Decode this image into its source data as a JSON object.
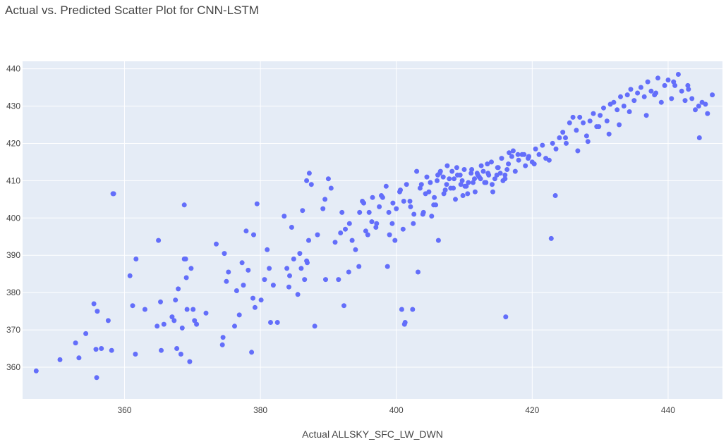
{
  "chart_data": {
    "type": "scatter",
    "title": "Actual vs. Predicted Scatter Plot for CNN-LSTM",
    "xlabel": "Actual ALLSKY_SFC_LW_DWN",
    "ylabel": "",
    "xlim": [
      345,
      448
    ],
    "ylim": [
      351.5,
      442
    ],
    "x_ticks": [
      360,
      380,
      400,
      420,
      440
    ],
    "y_ticks": [
      360,
      370,
      380,
      390,
      400,
      410,
      420,
      430,
      440
    ],
    "grid": true,
    "legend": "none",
    "plot_background": "#E5ECF6",
    "grid_color": "#FFFFFF",
    "marker_color": "#636EFA",
    "series": [
      {
        "x": [
          347.0,
          350.5,
          352.8,
          353.3,
          354.3,
          355.5,
          355.8,
          355.9,
          356.0,
          356.6,
          357.6,
          358.1,
          358.3,
          360.8,
          361.2,
          361.6,
          361.7,
          363.0,
          364.8,
          365.0,
          365.3,
          365.4,
          365.8,
          367.0,
          367.3,
          367.5,
          367.7,
          367.9,
          368.3,
          368.5,
          368.8,
          369.0,
          369.1,
          369.2,
          369.6,
          369.8,
          370.1,
          370.3,
          370.6,
          372.0,
          373.5,
          374.4,
          374.5,
          374.7,
          375.0,
          375.3,
          376.2,
          376.5,
          376.9,
          377.3,
          377.5,
          377.9,
          378.2,
          378.7,
          378.9,
          379.0,
          379.2,
          379.5,
          380.1,
          380.6,
          381.0,
          381.3,
          381.9,
          382.5,
          383.5,
          383.9,
          384.3,
          384.6,
          384.9,
          385.5,
          385.8,
          386.0,
          386.2,
          386.5,
          386.8,
          387.1,
          387.5,
          388.0,
          388.4,
          389.2,
          389.5,
          390.0,
          390.4,
          391.0,
          391.5,
          392.0,
          392.5,
          393.0,
          393.5,
          394.0,
          394.5,
          395.0,
          395.5,
          396.0,
          396.5,
          397.0,
          397.5,
          398.0,
          398.5,
          399.0,
          399.5,
          400.0,
          400.5,
          401.0,
          401.5,
          402.0,
          402.5,
          403.0,
          403.5,
          404.0,
          404.5,
          405.0,
          405.5,
          406.0,
          406.5,
          407.0,
          407.5,
          408.0,
          408.5,
          409.0,
          409.5,
          410.0,
          410.5,
          411.0,
          411.5,
          412.0,
          412.5,
          413.0,
          413.5,
          414.0,
          414.5,
          415.0,
          415.5,
          416.0,
          416.5,
          417.0,
          417.5,
          418.0,
          418.5,
          419.0,
          419.5,
          420.0,
          420.5,
          421.0,
          421.5,
          422.0,
          422.5,
          423.0,
          423.5,
          424.0,
          424.5,
          425.0,
          425.5,
          426.0,
          426.5,
          427.0,
          427.5,
          428.0,
          428.5,
          429.0,
          429.5,
          430.0,
          430.5,
          431.0,
          431.5,
          432.0,
          432.5,
          433.0,
          433.5,
          434.0,
          434.5,
          435.0,
          435.5,
          436.0,
          436.5,
          437.0,
          437.5,
          438.0,
          438.5,
          439.0,
          439.5,
          440.0,
          440.5,
          441.0,
          441.5,
          442.0,
          442.5,
          443.0,
          443.5,
          444.0,
          444.5,
          445.0,
          445.5,
          446.5,
          395.2,
          397.8,
          399.4,
          401.1,
          402.6,
          404.3,
          405.8,
          407.2,
          408.7,
          410.1,
          411.6,
          413.2,
          414.8,
          416.3,
          417.9,
          419.4,
          396.4,
          398.9,
          400.6,
          402.1,
          403.7,
          405.2,
          406.9,
          408.4,
          409.8,
          411.3,
          412.8,
          414.2,
          415.7,
          417.2,
          418.8,
          420.3,
          405.6,
          406.4,
          407.8,
          408.9,
          409.4,
          410.6,
          411.9,
          412.4,
          413.6,
          414.9,
          404.8,
          406.1,
          407.4,
          408.2,
          409.7,
          410.3,
          411.1,
          412.2,
          413.4,
          414.1,
          415.3,
          416.6,
          387.2,
          391.8,
          394.6,
          397.1,
          399.8,
          401.3,
          403.9,
          406.2,
          381.5,
          384.2,
          386.9,
          389.6,
          392.3,
          395.8,
          398.7,
          402.4,
          416.1,
          422.8,
          423.4,
          424.9,
          426.7,
          428.2,
          429.8,
          431.3,
          432.8,
          434.3,
          436.8,
          438.2,
          440.8,
          442.9,
          444.6,
          445.8,
          400.8,
          403.2,
          358.4,
          368.8,
          386.8,
          393.1,
          401.2,
          416.0
        ],
        "y": [
          359,
          362,
          366.5,
          362.5,
          369,
          377,
          364.8,
          357.2,
          375,
          365,
          372.5,
          364.5,
          406.5,
          384.5,
          376.5,
          363.5,
          389,
          375.5,
          371,
          394,
          377.5,
          364.5,
          371.5,
          373.5,
          372.5,
          378,
          365,
          381,
          363.5,
          370.5,
          403.5,
          389,
          384,
          375.5,
          361.5,
          386.5,
          375.5,
          372.5,
          371.5,
          374.5,
          393,
          366,
          368,
          390.5,
          383,
          385.5,
          371,
          380.5,
          374,
          388,
          382,
          396.5,
          386,
          364,
          378.5,
          395.5,
          376,
          403.8,
          378,
          383.5,
          391.5,
          386.5,
          382,
          372,
          400.5,
          386.5,
          384.5,
          397.5,
          389,
          379.5,
          390.5,
          386.5,
          402,
          383.5,
          410,
          394,
          409,
          371,
          395.5,
          402.5,
          405,
          410.5,
          408,
          393.5,
          383.5,
          401.5,
          397,
          385.5,
          394,
          391.5,
          387,
          404.5,
          396.5,
          401.5,
          405.5,
          397.5,
          403,
          405.5,
          408.5,
          395.5,
          404,
          402.5,
          407,
          397,
          409,
          404.5,
          398.5,
          412.5,
          408,
          401.5,
          411,
          409.5,
          403.5,
          410,
          412.5,
          406.5,
          414,
          408,
          410.5,
          411.5,
          409,
          413,
          406.5,
          412,
          410.5,
          411.5,
          414,
          409.5,
          412,
          415,
          410.5,
          413.5,
          416,
          411.5,
          414.5,
          416.5,
          412.5,
          415.5,
          417,
          414,
          416.5,
          415,
          418.5,
          417,
          419.5,
          416,
          415.5,
          420,
          418.5,
          421.5,
          423,
          420,
          425.5,
          427,
          423.5,
          427,
          425.5,
          422,
          426,
          428,
          424.5,
          427.5,
          429.5,
          426,
          430.5,
          431,
          429,
          432.5,
          430,
          433,
          434.5,
          431.5,
          433.5,
          435,
          432.5,
          436.5,
          434,
          433,
          437.5,
          431,
          435.5,
          437,
          432,
          435.5,
          438.5,
          434,
          431.5,
          434.5,
          432,
          429,
          430,
          431,
          430.5,
          433,
          404,
          406,
          398.5,
          404.5,
          401,
          406.5,
          403.5,
          407.5,
          405,
          408.5,
          407,
          409.5,
          411.5,
          413,
          417,
          416,
          399,
          401.5,
          407.5,
          403,
          409,
          400.5,
          411,
          408,
          406,
          409.5,
          412.5,
          407,
          410,
          418,
          417,
          414.5,
          405.5,
          412,
          410.5,
          413.5,
          411.5,
          409.5,
          412,
          410.5,
          411.5,
          413.5,
          407,
          411.5,
          409,
          412.5,
          410,
          408.5,
          413,
          411,
          414.5,
          409,
          412,
          417.5,
          412,
          396,
          401.5,
          398.5,
          394,
          372,
          401,
          394,
          372,
          381.5,
          388,
          383.5,
          376.5,
          395.5,
          387,
          375.5,
          373.5,
          394.5,
          406,
          421.5,
          418,
          420.5,
          424.5,
          422.5,
          425,
          428.5,
          427.5,
          433.5,
          436.5,
          435.5,
          421.5,
          428,
          375.5,
          385.5,
          406.5,
          389,
          388.5,
          398.5,
          371.5,
          410.5
        ]
      }
    ]
  }
}
